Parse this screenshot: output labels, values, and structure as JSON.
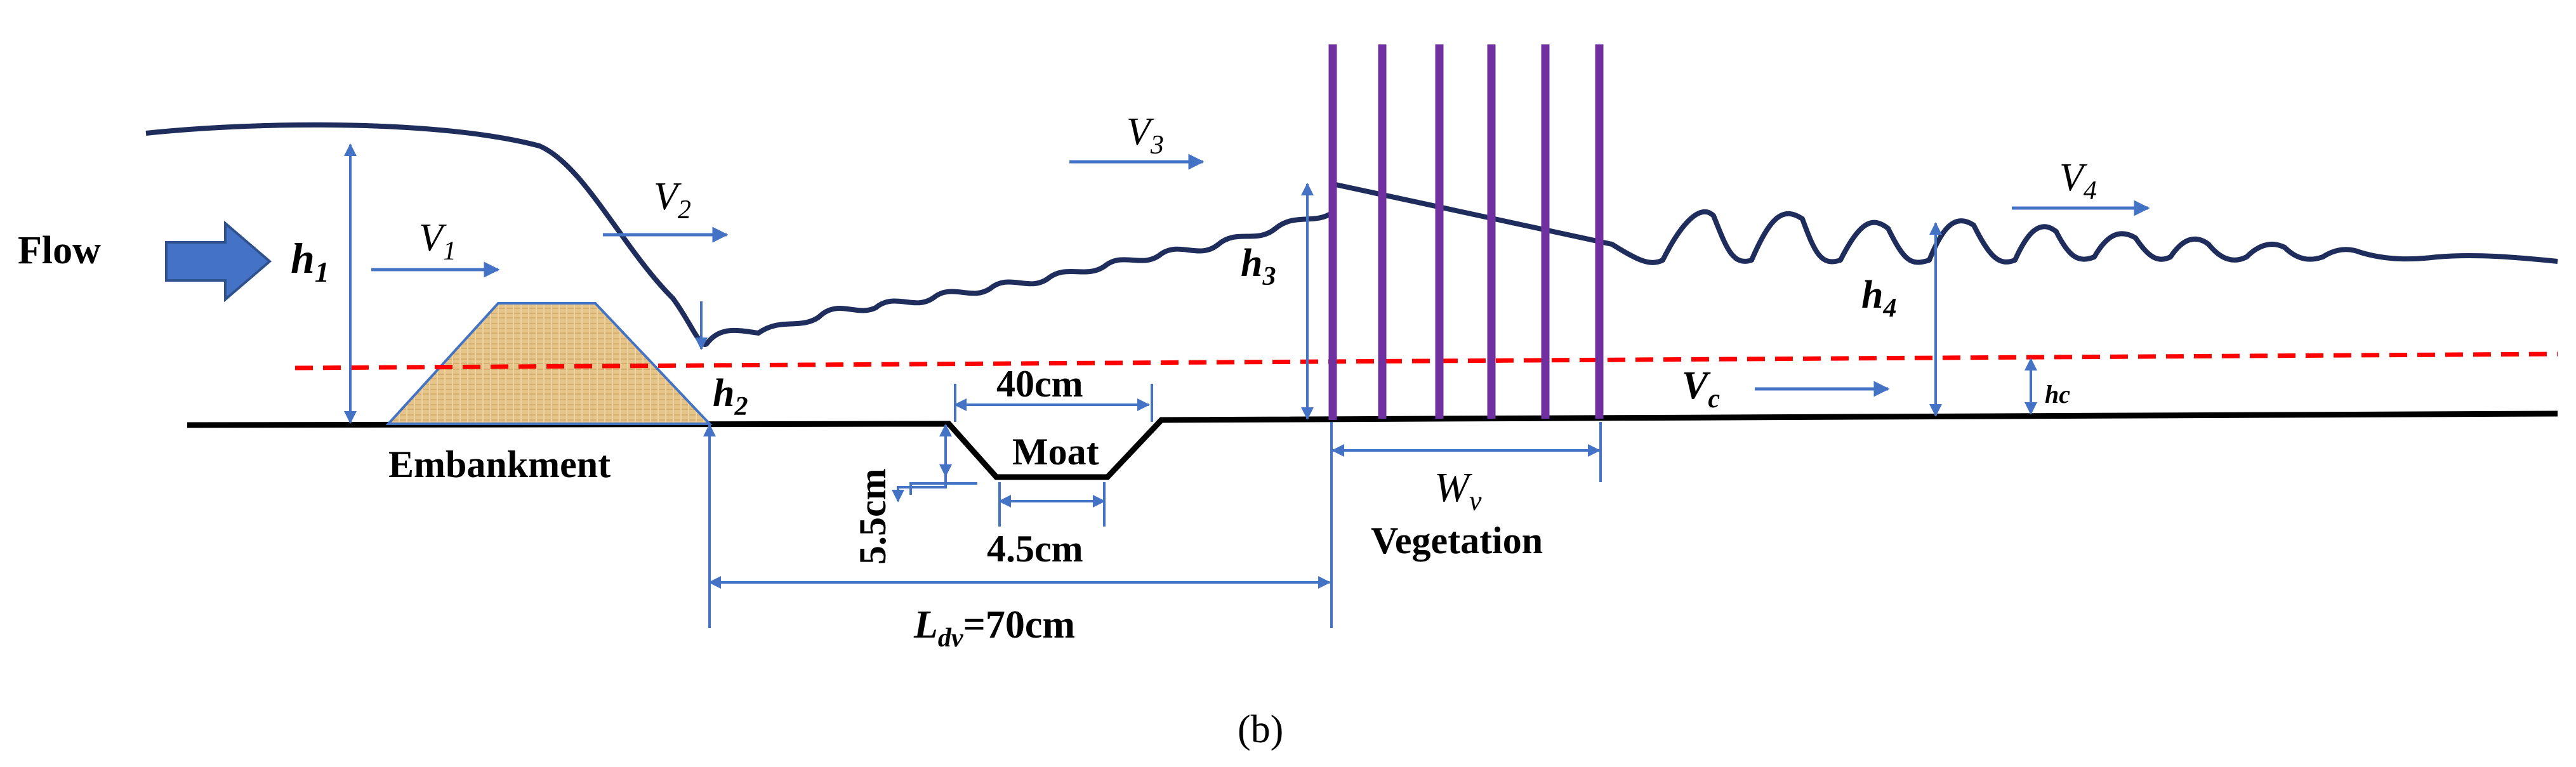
{
  "colors": {
    "arrow_blue": "#4472C4",
    "water_line": "#1F2D5C",
    "ground": "#000000",
    "critical_line": "#FF0000",
    "vegetation": "#7030A0",
    "embankment_fill": "#E6C58A",
    "embankment_stroke": "#4472C4"
  },
  "labels": {
    "flow": "Flow",
    "h1": "h",
    "h1_sub": "1",
    "h2": "h",
    "h2_sub": "2",
    "h3": "h",
    "h3_sub": "3",
    "h4": "h",
    "h4_sub": "4",
    "hc": "hc",
    "v1": "V",
    "v1_sub": "1",
    "v2": "V",
    "v2_sub": "2",
    "v3": "V",
    "v3_sub": "3",
    "v4": "V",
    "v4_sub": "4",
    "vc": "V",
    "vc_sub": "c",
    "embankment": "Embankment",
    "moat": "Moat",
    "moat_top_width": "40cm",
    "moat_bottom_width": "4.5cm",
    "moat_depth": "5.5cm",
    "wv": "W",
    "wv_sub": "v",
    "vegetation": "Vegetation",
    "ldv": "L",
    "ldv_sub": "dv",
    "ldv_value": "=70cm",
    "caption": "(b)"
  },
  "icons": {
    "flow_arrow": "block-arrow-right-icon",
    "dimension_arrow": "double-headed-arrow-icon",
    "velocity_arrow": "right-arrow-icon"
  }
}
